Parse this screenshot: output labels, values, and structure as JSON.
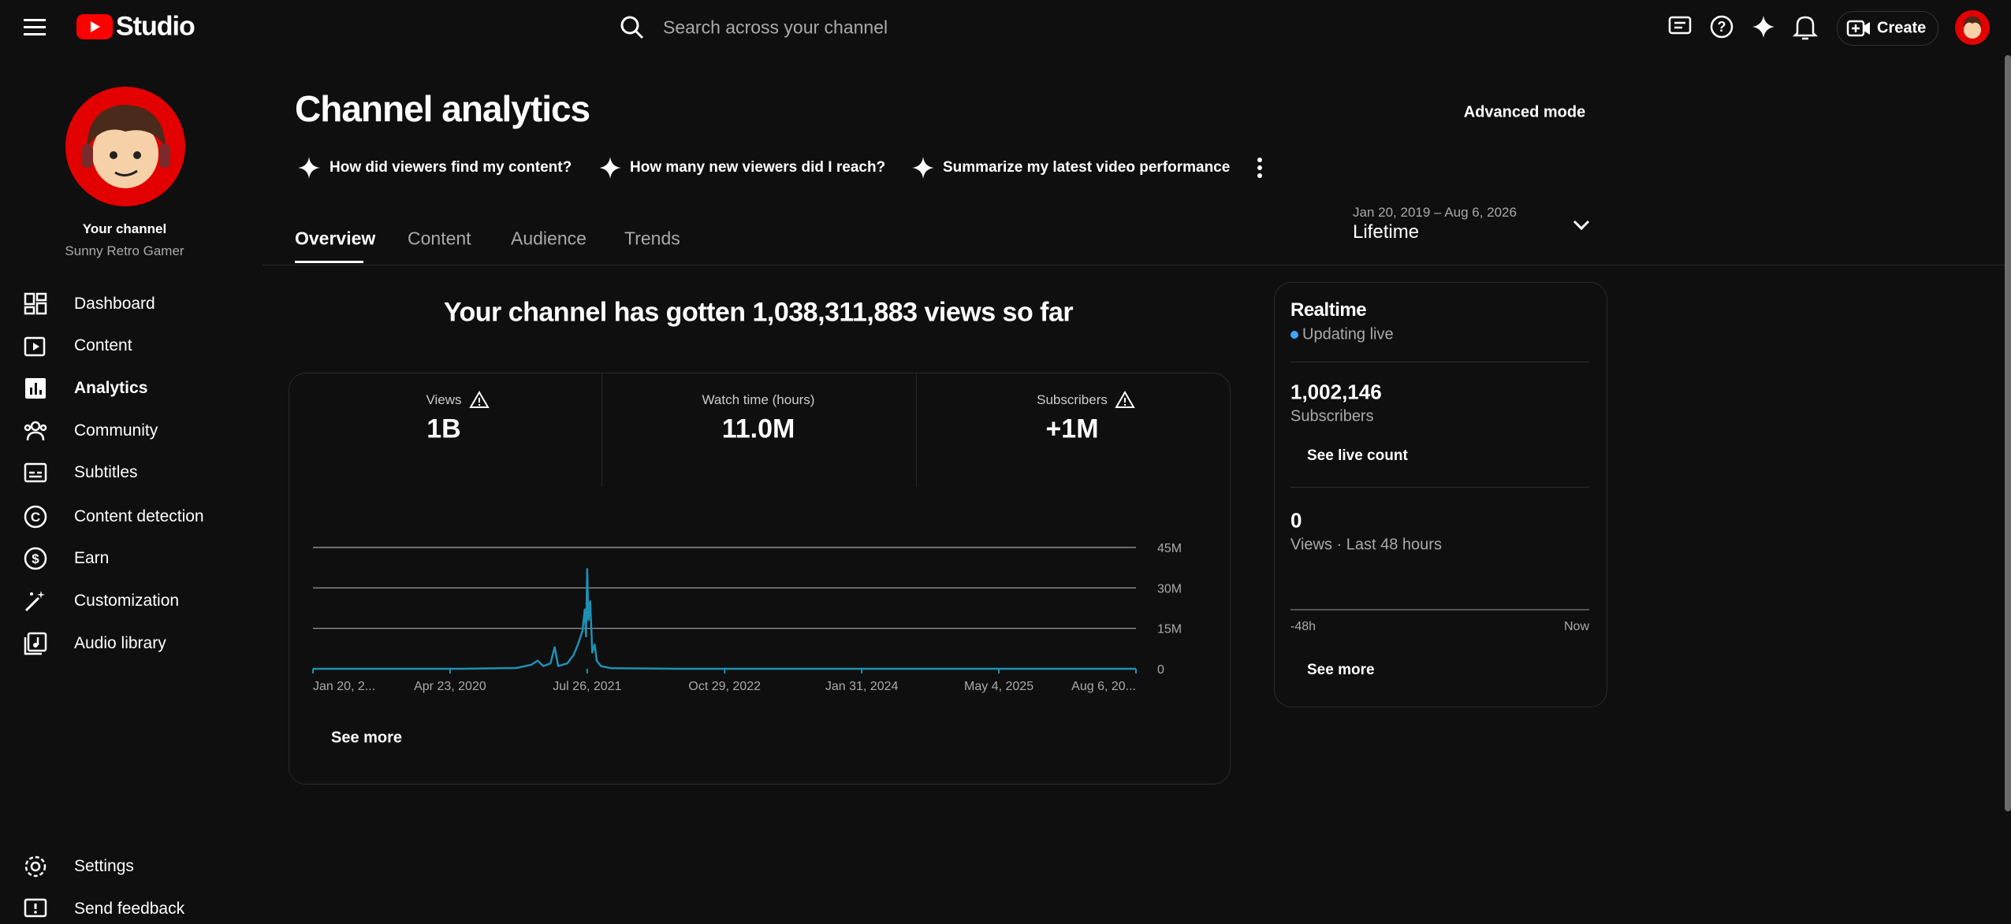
{
  "header": {
    "logo_text": "Studio",
    "search_placeholder": "Search across your channel",
    "create_button": "Create"
  },
  "sidebar": {
    "channel_label": "Your channel",
    "channel_name": "Sunny Retro Gamer",
    "nav": [
      "Dashboard",
      "Content",
      "Analytics",
      "Community",
      "Subtitles",
      "Content detection",
      "Earn",
      "Customization",
      "Audio library"
    ],
    "footer_nav": [
      "Settings",
      "Send feedback"
    ]
  },
  "page": {
    "title": "Channel analytics",
    "advanced_mode": "Advanced mode",
    "suggestions": [
      "How did viewers find my content?",
      "How many new viewers did I reach?",
      "Summarize my latest video performance"
    ],
    "tabs": [
      "Overview",
      "Content",
      "Audience",
      "Trends"
    ],
    "date_range": "Jan 20, 2019 – Aug 6, 2026",
    "period": "Lifetime",
    "headline": "Your channel has gotten 1,038,311,883 views so far"
  },
  "metrics": [
    {
      "label": "Views",
      "value": "1B"
    },
    {
      "label": "Watch time (hours)",
      "value": "11.0M"
    },
    {
      "label": "Subscribers",
      "value": "+1M"
    }
  ],
  "chart_data": {
    "type": "line",
    "color": "#1f8fb3",
    "grid": true,
    "x": [
      "2019-01-20",
      "2020-06-01",
      "2020-12-01",
      "2021-01-20",
      "2021-02-10",
      "2021-03-01",
      "2021-03-25",
      "2021-04-08",
      "2021-04-20",
      "2021-05-20",
      "2021-06-10",
      "2021-06-25",
      "2021-07-10",
      "2021-07-18",
      "2021-07-22",
      "2021-07-26",
      "2021-07-30",
      "2021-08-05",
      "2021-08-12",
      "2021-08-20",
      "2021-08-27",
      "2021-09-10",
      "2021-10-15",
      "2022-06-01",
      "2026-08-06"
    ],
    "values": [
      0,
      0,
      300000,
      1500000,
      3000000,
      1000000,
      2000000,
      8000000,
      1000000,
      2000000,
      5000000,
      9000000,
      14000000,
      22000000,
      12000000,
      37000000,
      18000000,
      25000000,
      6000000,
      9000000,
      3000000,
      1000000,
      200000,
      0,
      0
    ],
    "xlim": [
      "2019-01-20",
      "2026-08-06"
    ],
    "xticks": [
      {
        "value": "2019-01-20",
        "label": "Jan 20, 2..."
      },
      {
        "value": "2020-04-23",
        "label": "Apr 23, 2020"
      },
      {
        "value": "2021-07-26",
        "label": "Jul 26, 2021"
      },
      {
        "value": "2022-10-29",
        "label": "Oct 29, 2022"
      },
      {
        "value": "2024-01-31",
        "label": "Jan 31, 2024"
      },
      {
        "value": "2025-05-04",
        "label": "May 4, 2025"
      },
      {
        "value": "2026-08-06",
        "label": "Aug 6, 20..."
      }
    ],
    "ylim": [
      0,
      45000000
    ],
    "yticks": [
      0,
      {
        "value": 15000000,
        "label": "15M"
      },
      {
        "value": 30000000,
        "label": "30M"
      },
      {
        "value": 45000000,
        "label": "45M"
      }
    ]
  },
  "see_more": "See more",
  "realtime": {
    "title": "Realtime",
    "status": "Updating live",
    "subscribers": "1,002,146",
    "subscribers_label": "Subscribers",
    "live_count": "See live count",
    "views": "0",
    "views_label": "Views · Last 48 hours",
    "axis_start": "-48h",
    "axis_end": "Now",
    "see_more": "See more"
  }
}
